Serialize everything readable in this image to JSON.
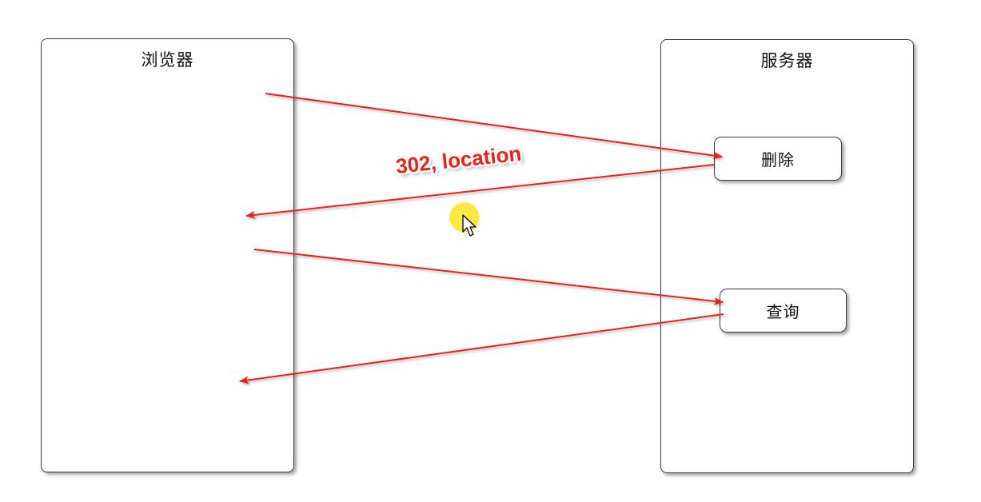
{
  "browser": {
    "title": "浏览器"
  },
  "server": {
    "title": "服务器",
    "nodes": {
      "delete": "删除",
      "query": "查询"
    }
  },
  "annotation": "302, location",
  "colors": {
    "arrow": "#e8241a",
    "border": "#3a3a3a",
    "highlight": "#f8e21e"
  }
}
